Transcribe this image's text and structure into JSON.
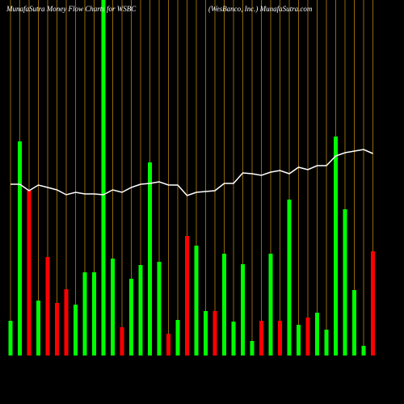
{
  "chart_data": {
    "type": "bar",
    "title": "MunafaSutra  Money Flow  Charts for WSBC",
    "subtitle": "(WesBanco, Inc.) MunafaSutra.com",
    "bars": {
      "values": [
        43,
        265,
        205,
        68,
        122,
        65,
        82,
        63,
        103,
        103,
        460,
        120,
        35,
        95,
        112,
        239,
        116,
        27,
        44,
        148,
        136,
        55,
        55,
        126,
        42,
        113,
        18,
        43,
        126,
        43,
        193,
        38,
        47,
        53,
        32,
        271,
        181,
        81,
        12,
        129
      ],
      "colors": [
        "g",
        "g",
        "r",
        "g",
        "r",
        "r",
        "r",
        "g",
        "g",
        "g",
        "g",
        "g",
        "r",
        "g",
        "g",
        "g",
        "g",
        "r",
        "g",
        "r",
        "g",
        "g",
        "r",
        "g",
        "g",
        "g",
        "g",
        "r",
        "g",
        "r",
        "g",
        "g",
        "r",
        "g",
        "g",
        "g",
        "g",
        "g",
        "g",
        "r"
      ]
    },
    "line": {
      "color": "#ffffff",
      "values": [
        212,
        212,
        204,
        211,
        208,
        205,
        199,
        202,
        200,
        200,
        199,
        205,
        202,
        208,
        212,
        213,
        215,
        211,
        211,
        198,
        202,
        203,
        204,
        213,
        213,
        226,
        225,
        223,
        227,
        229,
        225,
        233,
        230,
        235,
        235,
        247,
        251,
        253,
        255,
        250
      ]
    },
    "up_color": "#00ff00",
    "down_color": "#ff0000",
    "guide_color": "#b8860b"
  }
}
